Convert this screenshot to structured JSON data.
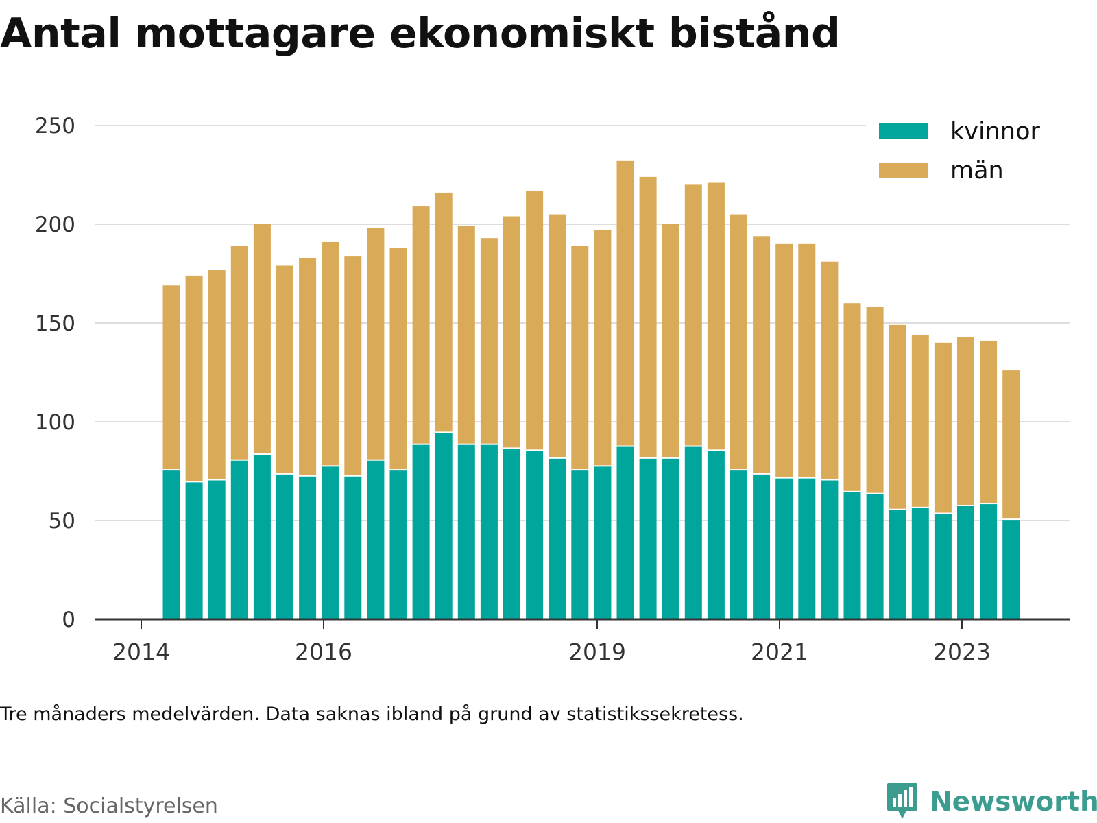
{
  "title": "Antal mottagare ekonomiskt bistånd",
  "note": "Tre månaders medelvärden. Data saknas ibland på grund av statistikssekretess.",
  "source": "Källa: Socialstyrelsen",
  "brand": "Newsworthy",
  "colors": {
    "kvinnor": "#00a59b",
    "man": "#d9ab59",
    "grid": "#dddddd",
    "axis": "#333333",
    "brand": "#3d9c90"
  },
  "chart_data": {
    "type": "bar",
    "stacked": true,
    "x_ticks": [
      "2014",
      "2016",
      "2019",
      "2021",
      "2023"
    ],
    "y_ticks": [
      0,
      50,
      100,
      150,
      200,
      250
    ],
    "ylim": [
      0,
      250
    ],
    "legend_position": "top-right",
    "grid": true,
    "series": [
      {
        "name": "kvinnor",
        "values": [
          76,
          70,
          71,
          81,
          84,
          74,
          73,
          78,
          73,
          81,
          76,
          89,
          95,
          89,
          89,
          87,
          86,
          82,
          76,
          78,
          88,
          82,
          82,
          88,
          86,
          76,
          74,
          72,
          72,
          71,
          65,
          64,
          56,
          57,
          54,
          58,
          59,
          51
        ]
      },
      {
        "name": "män",
        "values": [
          93,
          104,
          106,
          108,
          116,
          105,
          110,
          113,
          111,
          117,
          112,
          120,
          121,
          110,
          104,
          117,
          131,
          123,
          113,
          119,
          144,
          142,
          118,
          132,
          135,
          129,
          120,
          118,
          118,
          110,
          95,
          94,
          93,
          87,
          86,
          85,
          82,
          75
        ]
      }
    ]
  }
}
